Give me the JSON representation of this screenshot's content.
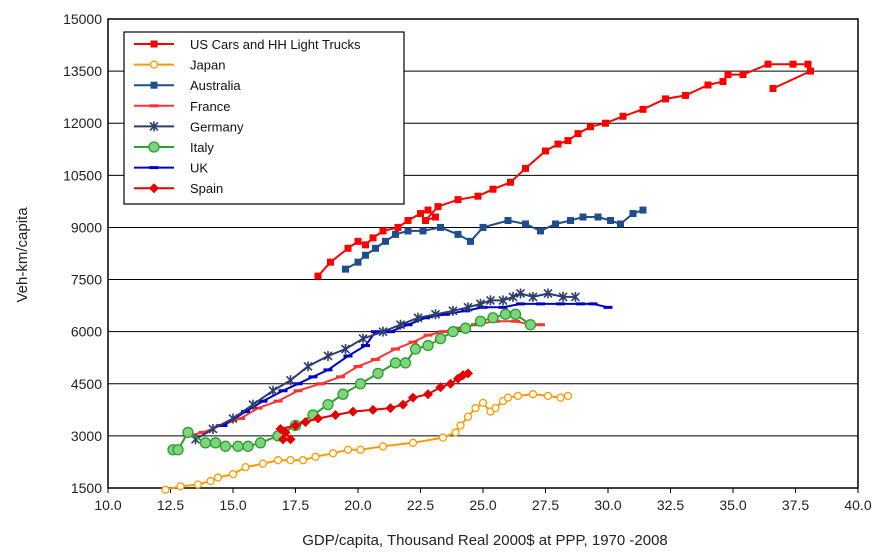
{
  "chart_data": {
    "type": "line",
    "xlabel": "GDP/capita, Thousand Real 2000$ at PPP, 1970 -2008",
    "ylabel": "Veh-km/capita",
    "xlim": [
      10,
      40
    ],
    "ylim": [
      1500,
      15000
    ],
    "x_ticks": [
      "10.0",
      "12.5",
      "15.0",
      "17.5",
      "20.0",
      "22.5",
      "25.0",
      "27.5",
      "30.0",
      "32.5",
      "35.0",
      "37.5",
      "40.0"
    ],
    "y_ticks": [
      "1500",
      "3000",
      "4500",
      "6000",
      "7500",
      "9000",
      "10500",
      "12000",
      "13500",
      "15000"
    ],
    "grid": "horizontal",
    "legend_position": "top-left",
    "series": [
      {
        "name": "US Cars and HH Light Trucks",
        "color": "#ff0000",
        "marker": "square",
        "points": [
          [
            18.4,
            7600
          ],
          [
            18.9,
            8000
          ],
          [
            19.6,
            8400
          ],
          [
            20.0,
            8600
          ],
          [
            20.3,
            8500
          ],
          [
            20.6,
            8700
          ],
          [
            21.0,
            8900
          ],
          [
            21.6,
            9000
          ],
          [
            22.0,
            9200
          ],
          [
            22.5,
            9400
          ],
          [
            22.8,
            9500
          ],
          [
            23.1,
            9300
          ],
          [
            22.7,
            9200
          ],
          [
            23.2,
            9600
          ],
          [
            24.0,
            9800
          ],
          [
            24.8,
            9900
          ],
          [
            25.4,
            10100
          ],
          [
            26.1,
            10300
          ],
          [
            26.7,
            10700
          ],
          [
            27.5,
            11200
          ],
          [
            28.0,
            11400
          ],
          [
            28.4,
            11500
          ],
          [
            28.8,
            11700
          ],
          [
            29.3,
            11900
          ],
          [
            29.9,
            12000
          ],
          [
            30.6,
            12200
          ],
          [
            31.4,
            12400
          ],
          [
            32.3,
            12700
          ],
          [
            33.1,
            12800
          ],
          [
            34.0,
            13100
          ],
          [
            34.6,
            13200
          ],
          [
            34.8,
            13400
          ],
          [
            35.4,
            13400
          ],
          [
            36.4,
            13700
          ],
          [
            37.4,
            13700
          ],
          [
            38.0,
            13700
          ],
          [
            38.1,
            13500
          ],
          [
            36.6,
            13000
          ]
        ]
      },
      {
        "name": "Japan",
        "color": "#ff9900",
        "marker": "circle",
        "fill": "#ffffff",
        "points": [
          [
            12.3,
            1450
          ],
          [
            12.9,
            1550
          ],
          [
            13.6,
            1600
          ],
          [
            14.1,
            1700
          ],
          [
            14.4,
            1800
          ],
          [
            15.0,
            1900
          ],
          [
            15.5,
            2100
          ],
          [
            16.2,
            2200
          ],
          [
            16.8,
            2300
          ],
          [
            17.3,
            2300
          ],
          [
            17.8,
            2300
          ],
          [
            18.3,
            2400
          ],
          [
            19.0,
            2500
          ],
          [
            19.6,
            2600
          ],
          [
            20.1,
            2600
          ],
          [
            21.0,
            2700
          ],
          [
            22.2,
            2800
          ],
          [
            23.4,
            2950
          ],
          [
            23.9,
            3100
          ],
          [
            24.1,
            3300
          ],
          [
            24.4,
            3550
          ],
          [
            24.7,
            3800
          ],
          [
            25.0,
            3950
          ],
          [
            25.3,
            3700
          ],
          [
            25.5,
            3800
          ],
          [
            25.8,
            4000
          ],
          [
            26.0,
            4100
          ],
          [
            26.4,
            4150
          ],
          [
            27.0,
            4200
          ],
          [
            27.6,
            4150
          ],
          [
            28.1,
            4100
          ],
          [
            28.4,
            4150
          ]
        ]
      },
      {
        "name": "Australia",
        "color": "#1f4e8c",
        "marker": "square",
        "points": [
          [
            19.5,
            7800
          ],
          [
            20.0,
            8000
          ],
          [
            20.3,
            8200
          ],
          [
            20.7,
            8400
          ],
          [
            21.1,
            8600
          ],
          [
            21.5,
            8800
          ],
          [
            22.0,
            8900
          ],
          [
            22.6,
            8900
          ],
          [
            23.3,
            9000
          ],
          [
            24.0,
            8800
          ],
          [
            24.5,
            8600
          ],
          [
            25.0,
            9000
          ],
          [
            26.0,
            9200
          ],
          [
            26.7,
            9100
          ],
          [
            27.3,
            8900
          ],
          [
            27.9,
            9100
          ],
          [
            28.5,
            9200
          ],
          [
            29.0,
            9300
          ],
          [
            29.6,
            9300
          ],
          [
            30.1,
            9200
          ],
          [
            30.5,
            9100
          ],
          [
            31.0,
            9400
          ],
          [
            31.4,
            9500
          ]
        ]
      },
      {
        "name": "France",
        "color": "#ff3333",
        "marker": "dash",
        "points": [
          [
            13.2,
            3000
          ],
          [
            13.8,
            3100
          ],
          [
            14.5,
            3300
          ],
          [
            15.3,
            3500
          ],
          [
            16.0,
            3800
          ],
          [
            16.8,
            4000
          ],
          [
            17.6,
            4300
          ],
          [
            18.5,
            4500
          ],
          [
            19.3,
            4700
          ],
          [
            20.0,
            5000
          ],
          [
            20.7,
            5200
          ],
          [
            21.5,
            5500
          ],
          [
            22.2,
            5700
          ],
          [
            22.8,
            5900
          ],
          [
            23.4,
            6000
          ],
          [
            24.0,
            6100
          ],
          [
            24.7,
            6200
          ],
          [
            25.5,
            6300
          ],
          [
            26.3,
            6300
          ],
          [
            26.9,
            6200
          ],
          [
            27.3,
            6200
          ]
        ]
      },
      {
        "name": "Germany",
        "color": "#2c3e6e",
        "marker": "x",
        "points": [
          [
            13.5,
            2900
          ],
          [
            14.2,
            3200
          ],
          [
            15.0,
            3500
          ],
          [
            15.8,
            3900
          ],
          [
            16.6,
            4300
          ],
          [
            17.3,
            4600
          ],
          [
            18.0,
            5000
          ],
          [
            18.8,
            5300
          ],
          [
            19.5,
            5500
          ],
          [
            20.2,
            5800
          ],
          [
            21.0,
            6000
          ],
          [
            21.7,
            6200
          ],
          [
            22.4,
            6400
          ],
          [
            23.1,
            6500
          ],
          [
            23.8,
            6600
          ],
          [
            24.4,
            6700
          ],
          [
            24.9,
            6800
          ],
          [
            25.3,
            6900
          ],
          [
            25.8,
            6900
          ],
          [
            26.2,
            7000
          ],
          [
            26.5,
            7100
          ],
          [
            27.0,
            7000
          ],
          [
            27.6,
            7100
          ],
          [
            28.2,
            7000
          ],
          [
            28.7,
            7000
          ]
        ]
      },
      {
        "name": "Italy",
        "color": "#2ca02c",
        "marker": "circle",
        "fill": "#7fd47f",
        "points": [
          [
            12.6,
            2600
          ],
          [
            12.8,
            2600
          ],
          [
            13.2,
            3100
          ],
          [
            13.9,
            2800
          ],
          [
            14.3,
            2800
          ],
          [
            14.7,
            2700
          ],
          [
            15.2,
            2700
          ],
          [
            15.6,
            2700
          ],
          [
            16.1,
            2800
          ],
          [
            16.8,
            3000
          ],
          [
            17.5,
            3300
          ],
          [
            18.2,
            3600
          ],
          [
            18.8,
            3900
          ],
          [
            19.4,
            4200
          ],
          [
            20.1,
            4500
          ],
          [
            20.8,
            4800
          ],
          [
            21.5,
            5100
          ],
          [
            21.9,
            5100
          ],
          [
            22.3,
            5500
          ],
          [
            22.8,
            5600
          ],
          [
            23.3,
            5800
          ],
          [
            23.8,
            6000
          ],
          [
            24.3,
            6100
          ],
          [
            24.9,
            6300
          ],
          [
            25.4,
            6400
          ],
          [
            25.9,
            6500
          ],
          [
            26.3,
            6500
          ],
          [
            26.9,
            6200
          ]
        ]
      },
      {
        "name": "UK",
        "color": "#0000cc",
        "marker": "dash",
        "points": [
          [
            14.6,
            3300
          ],
          [
            15.5,
            3700
          ],
          [
            16.2,
            4000
          ],
          [
            17.0,
            4300
          ],
          [
            17.6,
            4500
          ],
          [
            18.2,
            4700
          ],
          [
            18.8,
            4900
          ],
          [
            19.6,
            5300
          ],
          [
            20.3,
            5600
          ],
          [
            20.7,
            6000
          ],
          [
            21.3,
            6000
          ],
          [
            22.0,
            6200
          ],
          [
            22.7,
            6400
          ],
          [
            23.5,
            6500
          ],
          [
            24.3,
            6600
          ],
          [
            25.0,
            6700
          ],
          [
            25.8,
            6700
          ],
          [
            26.5,
            6800
          ],
          [
            27.3,
            6800
          ],
          [
            28.1,
            6800
          ],
          [
            28.9,
            6800
          ],
          [
            29.4,
            6800
          ],
          [
            30.0,
            6700
          ]
        ]
      },
      {
        "name": "Spain",
        "color": "#e60000",
        "marker": "diamond",
        "points": [
          [
            17.0,
            2900
          ],
          [
            17.3,
            2900
          ],
          [
            17.1,
            3100
          ],
          [
            16.9,
            3200
          ],
          [
            17.5,
            3300
          ],
          [
            17.9,
            3400
          ],
          [
            18.4,
            3500
          ],
          [
            19.1,
            3600
          ],
          [
            19.8,
            3700
          ],
          [
            20.6,
            3750
          ],
          [
            21.3,
            3800
          ],
          [
            21.8,
            3900
          ],
          [
            22.2,
            4100
          ],
          [
            22.8,
            4200
          ],
          [
            23.3,
            4400
          ],
          [
            23.7,
            4500
          ],
          [
            24.0,
            4650
          ],
          [
            24.2,
            4750
          ],
          [
            24.4,
            4800
          ]
        ]
      }
    ]
  }
}
